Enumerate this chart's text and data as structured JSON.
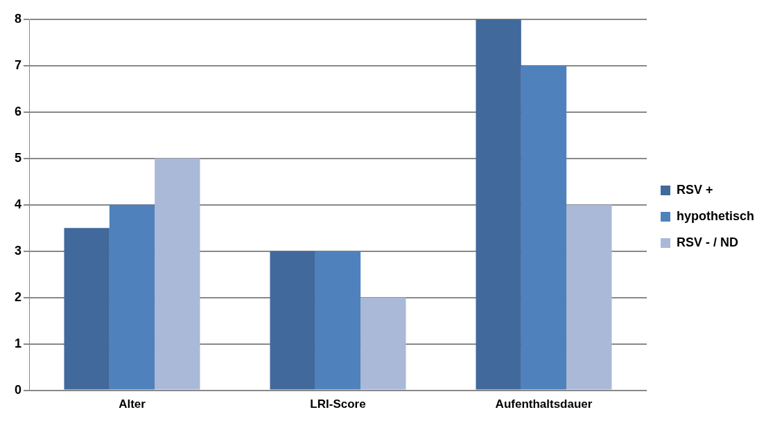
{
  "chart_data": {
    "type": "bar",
    "categories": [
      "Alter",
      "LRI-Score",
      "Aufenthaltsdauer"
    ],
    "series": [
      {
        "name": "RSV +",
        "color": "#41699b",
        "values": [
          3.5,
          3,
          8
        ]
      },
      {
        "name": "hypothetisch",
        "color": "#4f81bd",
        "values": [
          4,
          3,
          7
        ]
      },
      {
        "name": "RSV - / ND",
        "color": "#aab9d8",
        "values": [
          5,
          2,
          4
        ]
      }
    ],
    "ylim": [
      0,
      8
    ],
    "yticks": [
      0,
      1,
      2,
      3,
      4,
      5,
      6,
      7,
      8
    ],
    "grid": "y",
    "legend": "right"
  }
}
